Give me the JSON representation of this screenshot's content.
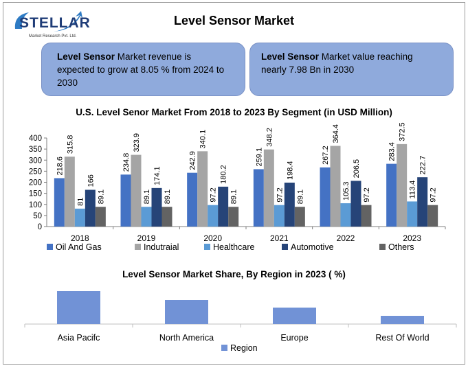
{
  "logo": {
    "word": "STELLAR",
    "sub": "Market Research Pvt. Ltd."
  },
  "title": "Level Sensor Market",
  "boxes": [
    {
      "bold": "Level Sensor",
      "text": " Market revenue is expected to grow at 8.05 % from 2024 to 2030"
    },
    {
      "bold": "Level Sensor",
      "text": " Market value reaching nearly 7.98 Bn in 2030"
    }
  ],
  "colors": {
    "oil": "#4472c4",
    "industrial": "#a5a5a5",
    "healthcare": "#5b9bd5",
    "automotive": "#264478",
    "others": "#636363",
    "region": "#7192d6"
  },
  "chart_data": [
    {
      "type": "bar",
      "title": "U.S. Level Senor Market From 2018 to 2023 By Segment (in USD Million)",
      "categories": [
        "2018",
        "2019",
        "2020",
        "2021",
        "2022",
        "2023"
      ],
      "series": [
        {
          "name": "Oil And Gas",
          "values": [
            218.6,
            234.8,
            242.9,
            259.1,
            267.2,
            283.4
          ]
        },
        {
          "name": "Indutraial",
          "values": [
            315.8,
            323.9,
            340.1,
            348.2,
            364.4,
            372.5
          ]
        },
        {
          "name": "Healthcare",
          "values": [
            81,
            89.1,
            97.2,
            97.2,
            105.3,
            113.4
          ]
        },
        {
          "name": "Automotive",
          "values": [
            166,
            174.1,
            180.2,
            198.4,
            206.5,
            222.7
          ]
        },
        {
          "name": "Others",
          "values": [
            89.1,
            89.1,
            89.1,
            89.1,
            97.2,
            97.2
          ]
        }
      ],
      "yticks": [
        0,
        50,
        100,
        150,
        200,
        250,
        300,
        350,
        400
      ],
      "ylim": [
        0,
        400
      ],
      "legend": "bottom"
    },
    {
      "type": "bar",
      "title": "Level Sensor Market Share,  By Region in 2023 ( %)",
      "categories": [
        "Asia Pacifc",
        "North America",
        "Europe",
        "Rest Of World"
      ],
      "series": [
        {
          "name": "Region",
          "values": [
            48,
            35,
            24,
            12
          ]
        }
      ],
      "legend": "bottom"
    }
  ]
}
